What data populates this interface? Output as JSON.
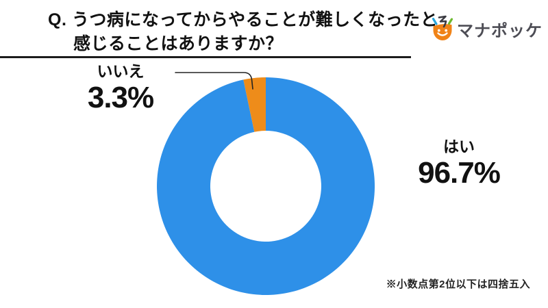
{
  "page": {
    "background": "#ffffff"
  },
  "header": {
    "title_line1": "Q. うつ病になってからやることが難しくなったと",
    "title_line2": "感じることはありますか？"
  },
  "logo": {
    "text": "マナポッケ",
    "icon": "manapokke-mascot",
    "colors": {
      "text": "#4D4D55",
      "bowl": "#F08318",
      "face": "#FFFFFF",
      "spark_left": "#2AA7DC",
      "spark_right": "#6CB92E",
      "zigzag": "#3B3B42"
    }
  },
  "chart_data": {
    "type": "pie",
    "style": "donut",
    "title": "Q. うつ病になってからやることが難しくなったと感じることはありますか？",
    "categories": [
      "はい",
      "いいえ"
    ],
    "values": [
      96.7,
      3.3
    ],
    "unit": "%",
    "colors": [
      "#2E90E8",
      "#EE8C1A"
    ],
    "start_angle_deg": 0,
    "direction": "clockwise",
    "inner_radius_ratio": 0.51,
    "legend_position": "none",
    "labels": {
      "yes": {
        "name": "はい",
        "value": "96.7%",
        "position": "right"
      },
      "no": {
        "name": "いいえ",
        "value": "3.3%",
        "position": "top-left",
        "leader_line": true
      }
    },
    "footnote": "※小数点第2位以下は四捨五入",
    "leader_line_color": "#222222"
  }
}
